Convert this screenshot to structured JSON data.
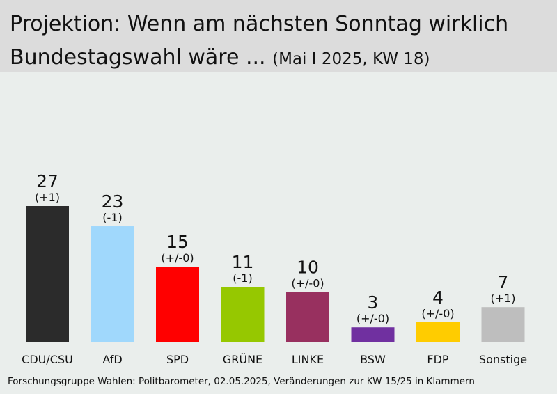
{
  "header": {
    "title_line1": "Projektion: Wenn am nächsten Sonntag wirklich",
    "title_line2": "Bundestagswahl wäre ...",
    "subtitle": "(Mai I 2025, KW 18)"
  },
  "chart_data": {
    "type": "bar",
    "title": "Projektion: Wenn am nächsten Sonntag wirklich Bundestagswahl wäre ... (Mai I 2025, KW 18)",
    "categories": [
      "CDU/CSU",
      "AfD",
      "SPD",
      "GRÜNE",
      "LINKE",
      "BSW",
      "FDP",
      "Sonstige"
    ],
    "values": [
      27,
      23,
      15,
      11,
      10,
      3,
      4,
      7
    ],
    "changes": [
      "(+1)",
      "(-1)",
      "(+/-0)",
      "(-1)",
      "(+/-0)",
      "(+/-0)",
      "(+/-0)",
      "(+1)"
    ],
    "colors": [
      "#2b2b2b",
      "#a0d8fc",
      "#ff0000",
      "#96c800",
      "#98305f",
      "#7030a0",
      "#ffcc00",
      "#bebebe"
    ],
    "ylim": [
      0,
      27
    ],
    "grid": false,
    "legend": "none"
  },
  "footer": {
    "source": "Forschungsgruppe  Wahlen: Politbarometer, 02.05.2025,  Veränderungen  zur  KW 15/25  in Klammern"
  }
}
